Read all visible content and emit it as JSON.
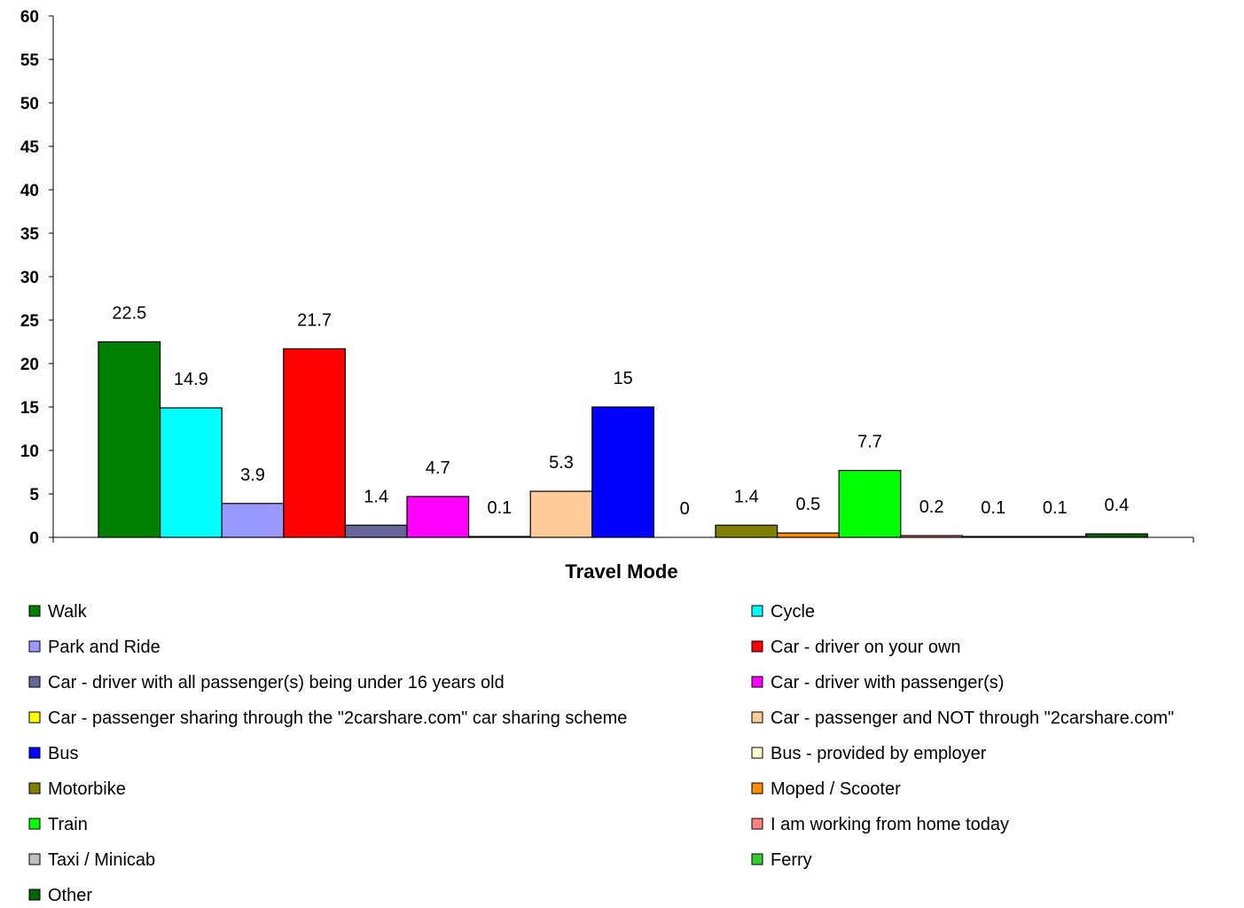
{
  "chart_data": {
    "type": "bar",
    "title": "",
    "xlabel": "Travel Mode",
    "ylabel": "",
    "ylim": [
      0,
      60
    ],
    "y_ticks": [
      0,
      5,
      10,
      15,
      20,
      25,
      30,
      35,
      40,
      45,
      50,
      55,
      60
    ],
    "grid": false,
    "legend_position": "bottom",
    "series": [
      {
        "name": "Walk",
        "value": 22.5,
        "label": "22.5",
        "color": "#008000"
      },
      {
        "name": "Cycle",
        "value": 14.9,
        "label": "14.9",
        "color": "#00FFFF"
      },
      {
        "name": "Park and Ride",
        "value": 3.9,
        "label": "3.9",
        "color": "#9999FF"
      },
      {
        "name": "Car - driver on your own",
        "value": 21.7,
        "label": "21.7",
        "color": "#FF0000"
      },
      {
        "name": "Car - driver with all passenger(s) being under 16 years old",
        "value": 1.4,
        "label": "1.4",
        "color": "#666699"
      },
      {
        "name": "Car - driver with passenger(s)",
        "value": 4.7,
        "label": "4.7",
        "color": "#FF00FF"
      },
      {
        "name": "Car -  passenger sharing through the \"2carshare.com\"  car sharing scheme",
        "value": 0.1,
        "label": "0.1",
        "color": "#FFFF00"
      },
      {
        "name": "Car - passenger and NOT through \"2carshare.com\"",
        "value": 5.3,
        "label": "5.3",
        "color": "#FFCC99"
      },
      {
        "name": "Bus",
        "value": 15,
        "label": "15",
        "color": "#0000FF"
      },
      {
        "name": "Bus - provided by employer",
        "value": 0,
        "label": "0",
        "color": "#FFFFCC"
      },
      {
        "name": "Motorbike",
        "value": 1.4,
        "label": "1.4",
        "color": "#808000"
      },
      {
        "name": "Moped / Scooter",
        "value": 0.5,
        "label": "0.5",
        "color": "#FF8C00"
      },
      {
        "name": "Train",
        "value": 7.7,
        "label": "7.7",
        "color": "#00FF00"
      },
      {
        "name": "I am working from home today",
        "value": 0.2,
        "label": "0.2",
        "color": "#FF8080"
      },
      {
        "name": "Taxi / Minicab",
        "value": 0.1,
        "label": "0.1",
        "color": "#C0C0C0"
      },
      {
        "name": "Ferry",
        "value": 0.1,
        "label": "0.1",
        "color": "#33CC33"
      },
      {
        "name": "Other",
        "value": 0.4,
        "label": "0.4",
        "color": "#006400"
      }
    ]
  }
}
